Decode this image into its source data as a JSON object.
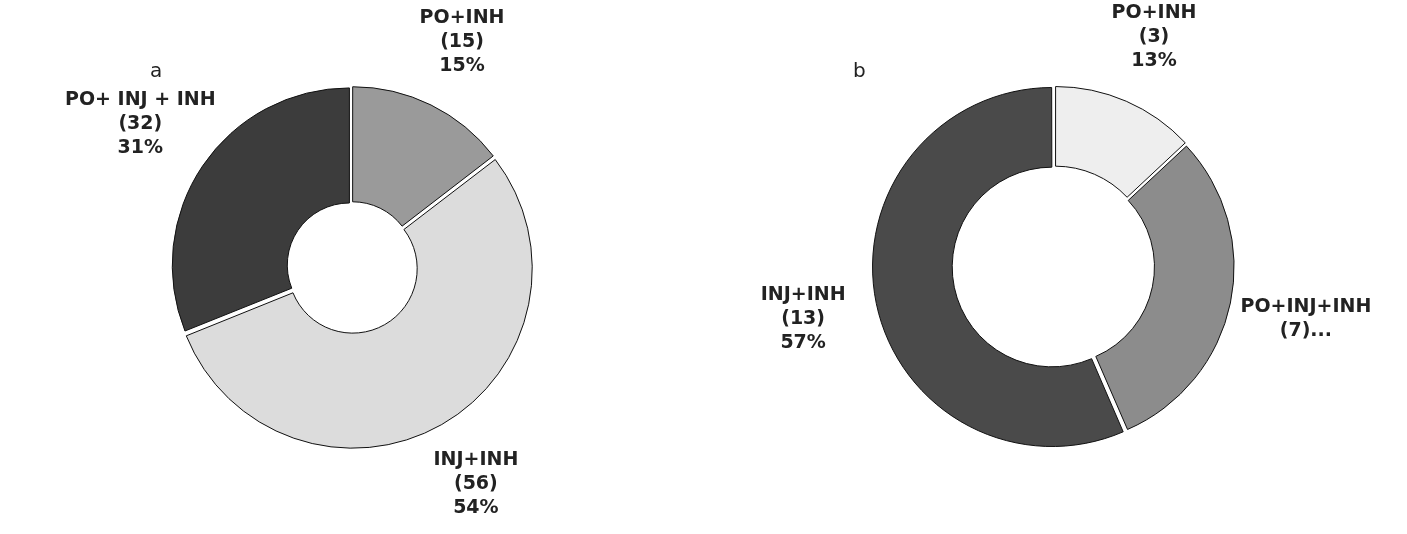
{
  "chart_data": [
    {
      "type": "donut",
      "title": "a",
      "categories": [
        "PO+INH",
        "INJ+INH",
        "PO+ INJ + INH"
      ],
      "values": [
        15,
        56,
        32
      ],
      "colors": [
        "#9a9a9a",
        "#dcdcdc",
        "#3c3c3c"
      ],
      "value_labels": [
        "(15)\n15%",
        "(56)\n54%",
        "(32)\n31%"
      ]
    },
    {
      "type": "donut",
      "title": "b",
      "categories": [
        "PO+INH",
        "PO+INJ+INH",
        "INJ+INH"
      ],
      "values": [
        3,
        7,
        13
      ],
      "colors": [
        "#eeeeee",
        "#8c8c8c",
        "#4a4a4a"
      ],
      "value_labels": [
        "(3)\n13%",
        "(7)...",
        "(13)\n57%"
      ]
    }
  ]
}
